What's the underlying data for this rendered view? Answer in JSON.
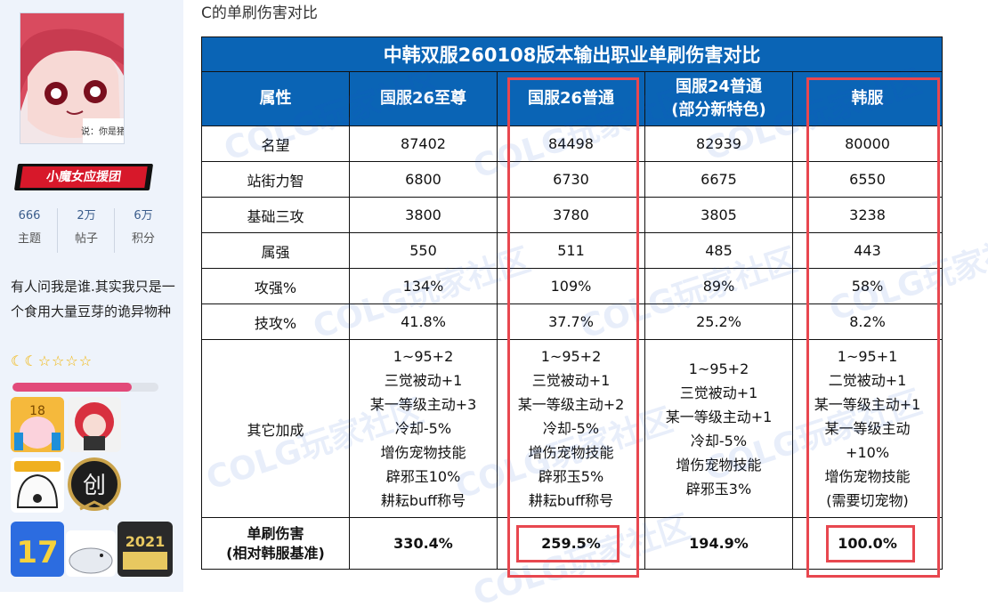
{
  "colors": {
    "accent": "#0a64b5",
    "highlight": "#e8474f",
    "badge_red": "#d7182a"
  },
  "post": {
    "title": "C的单刷伤害对比"
  },
  "profile": {
    "avatar_caption": "说：你是猪",
    "group_badge": "小魔女应援团",
    "stats": [
      {
        "value": "666",
        "label": "主题"
      },
      {
        "value": "2万",
        "label": "帖子"
      },
      {
        "value": "6万",
        "label": "积分"
      }
    ],
    "bio": "有人问我是谁.其实我只是一个食用大量豆芽的诡异物种",
    "stars": "☾☾☆☆☆☆",
    "level_progress": 0.82,
    "medals": [
      "medal-18",
      "medal-redhead",
      "medal-sleep",
      "medal-chuang",
      "medal-17",
      "medal-seal",
      "medal-2021"
    ]
  },
  "table": {
    "caption": "中韩双服260108版本输出职业单刷伤害对比",
    "headers": [
      "属性",
      "国服26至尊",
      "国服26普通",
      "国服24普通\n(部分新特色)",
      "韩服"
    ],
    "rows": [
      {
        "label": "名望",
        "values": [
          "87402",
          "84498",
          "82939",
          "80000"
        ]
      },
      {
        "label": "站街力智",
        "values": [
          "6800",
          "6730",
          "6675",
          "6550"
        ]
      },
      {
        "label": "基础三攻",
        "values": [
          "3800",
          "3780",
          "3805",
          "3238"
        ]
      },
      {
        "label": "属强",
        "values": [
          "550",
          "511",
          "485",
          "443"
        ]
      },
      {
        "label": "攻强%",
        "values": [
          "134%",
          "109%",
          "89%",
          "58%"
        ]
      },
      {
        "label": "技攻%",
        "values": [
          "41.8%",
          "37.7%",
          "25.2%",
          "8.2%"
        ]
      }
    ],
    "bonus": {
      "label": "其它加成",
      "values": [
        [
          "1~95+2",
          "三觉被动+1",
          "某一等级主动+3",
          "冷却-5%",
          "增伤宠物技能",
          "辟邪玉10%",
          "耕耘buff称号"
        ],
        [
          "1~95+2",
          "三觉被动+1",
          "某一等级主动+2",
          "冷却-5%",
          "增伤宠物技能",
          "辟邪玉5%",
          "耕耘buff称号"
        ],
        [
          "1~95+2",
          "三觉被动+1",
          "某一等级主动+1",
          "冷却-5%",
          "增伤宠物技能",
          "辟邪玉3%"
        ],
        [
          "1~95+1",
          "二觉被动+1",
          "某一等级主动+1",
          "某一等级主动",
          "+10%",
          "增伤宠物技能",
          "(需要切宠物)"
        ]
      ]
    },
    "damage": {
      "label": "单刷伤害\n(相对韩服基准)",
      "values": [
        "330.4%",
        "259.5%",
        "194.9%",
        "100.0%"
      ]
    }
  },
  "watermark": "COLG玩家社区"
}
